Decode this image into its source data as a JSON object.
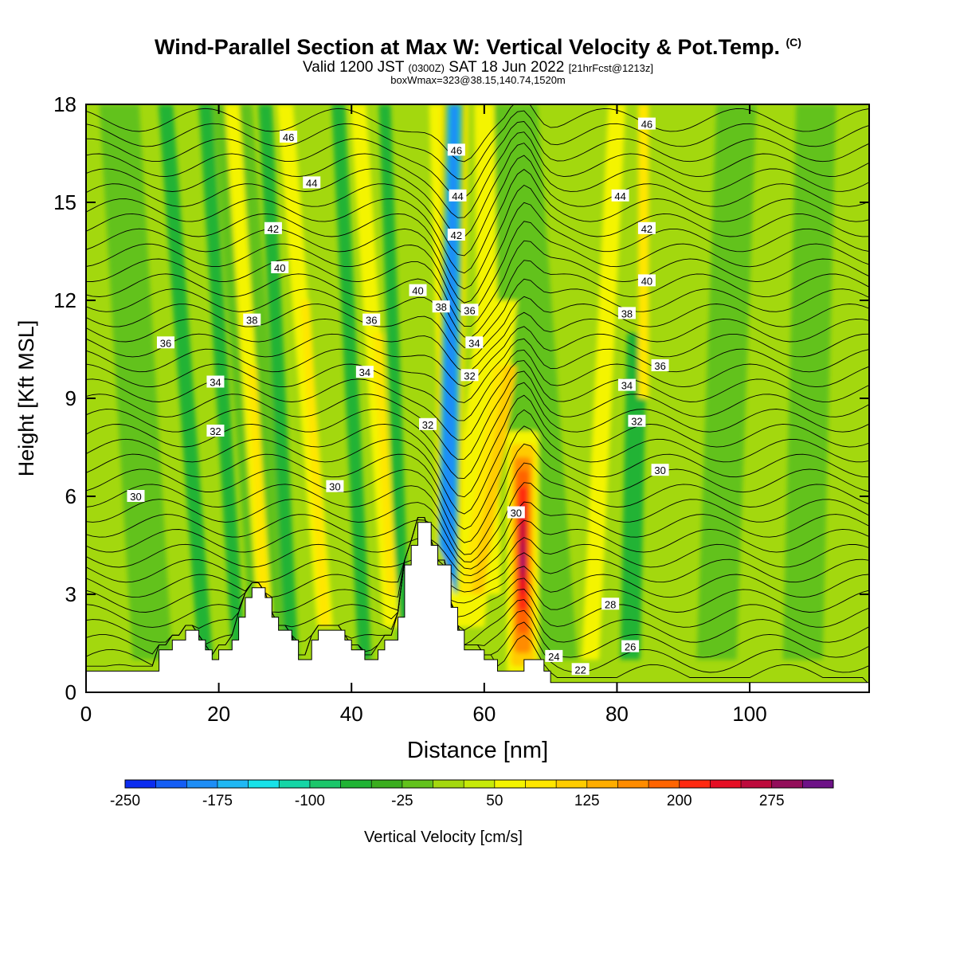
{
  "header": {
    "title_main": "Wind-Parallel Section at Max W: Vertical Velocity & Pot.Temp.",
    "title_tag": "(C)",
    "valid_prefix": "Valid 1200 JST",
    "valid_utc": "(0300Z)",
    "valid_date": "SAT 18 Jun 2022",
    "valid_fcst": "[21hrFcst@1213z]",
    "boxwmax": "boxWmax=323@38.15,140.74,1520m"
  },
  "chart_data": {
    "type": "heatmap",
    "xlabel": "Distance [nm]",
    "ylabel": "Height [Kft MSL]",
    "xlim": [
      0,
      118
    ],
    "ylim": [
      0,
      18
    ],
    "xticks": [
      0,
      20,
      40,
      60,
      80,
      100
    ],
    "yticks": [
      0,
      3,
      6,
      9,
      12,
      15,
      18
    ],
    "grid": false,
    "colorbar": {
      "label": "Vertical Velocity [cm/s]",
      "ticks": [
        -250,
        -175,
        -100,
        -25,
        50,
        125,
        200,
        275
      ],
      "levels": [
        -250,
        -225,
        -200,
        -175,
        -150,
        -125,
        -100,
        -75,
        -50,
        -25,
        0,
        25,
        50,
        75,
        100,
        125,
        150,
        175,
        200,
        225,
        250,
        275,
        300,
        325
      ],
      "colors": [
        "#0b2cf0",
        "#155ef5",
        "#1e8ef6",
        "#20b8f4",
        "#17e2e8",
        "#15d6a6",
        "#1bc66a",
        "#20b334",
        "#3aad1e",
        "#62c21c",
        "#a3d80e",
        "#c6ea08",
        "#f4f400",
        "#ffe600",
        "#ffcc00",
        "#ffad00",
        "#ff8c00",
        "#ff6400",
        "#ff2a10",
        "#e60e24",
        "#bd0a3c",
        "#930e5a",
        "#6d1287"
      ]
    },
    "contour_field": "Potential temperature",
    "contour_labels": [
      {
        "value": 46,
        "x": 30.5,
        "y": 17.0
      },
      {
        "value": 44,
        "x": 34,
        "y": 15.6
      },
      {
        "value": 42,
        "x": 28.2,
        "y": 14.2
      },
      {
        "value": 40,
        "x": 29.2,
        "y": 13.0
      },
      {
        "value": 38,
        "x": 25,
        "y": 11.4
      },
      {
        "value": 36,
        "x": 12,
        "y": 10.7
      },
      {
        "value": 34,
        "x": 19.5,
        "y": 9.5
      },
      {
        "value": 32,
        "x": 19.5,
        "y": 8.0
      },
      {
        "value": 30,
        "x": 7.5,
        "y": 6.0
      },
      {
        "value": 36,
        "x": 43,
        "y": 11.4
      },
      {
        "value": 34,
        "x": 42,
        "y": 9.8
      },
      {
        "value": 30,
        "x": 37.5,
        "y": 6.3
      },
      {
        "value": 46,
        "x": 55.8,
        "y": 16.6
      },
      {
        "value": 44,
        "x": 56,
        "y": 15.2
      },
      {
        "value": 42,
        "x": 55.8,
        "y": 14.0
      },
      {
        "value": 40,
        "x": 50,
        "y": 12.3
      },
      {
        "value": 38,
        "x": 53.5,
        "y": 11.8
      },
      {
        "value": 36,
        "x": 57.8,
        "y": 11.7
      },
      {
        "value": 34,
        "x": 58.5,
        "y": 10.7
      },
      {
        "value": 32,
        "x": 57.8,
        "y": 9.7
      },
      {
        "value": 32,
        "x": 51.5,
        "y": 8.2
      },
      {
        "value": 30,
        "x": 64.8,
        "y": 5.5
      },
      {
        "value": 46,
        "x": 84.5,
        "y": 17.4
      },
      {
        "value": 44,
        "x": 80.5,
        "y": 15.2
      },
      {
        "value": 42,
        "x": 84.5,
        "y": 14.2
      },
      {
        "value": 40,
        "x": 84.5,
        "y": 12.6
      },
      {
        "value": 38,
        "x": 81.5,
        "y": 11.6
      },
      {
        "value": 36,
        "x": 86.5,
        "y": 10.0
      },
      {
        "value": 34,
        "x": 81.5,
        "y": 9.4
      },
      {
        "value": 32,
        "x": 83,
        "y": 8.3
      },
      {
        "value": 30,
        "x": 86.5,
        "y": 6.8
      },
      {
        "value": 28,
        "x": 79,
        "y": 2.7
      },
      {
        "value": 26,
        "x": 82,
        "y": 1.4
      },
      {
        "value": 24,
        "x": 70.5,
        "y": 1.1
      },
      {
        "value": 22,
        "x": 74.5,
        "y": 0.7
      }
    ],
    "terrain_kft": [
      [
        0,
        0.65
      ],
      [
        11,
        0.65
      ],
      [
        11,
        1.3
      ],
      [
        13,
        1.3
      ],
      [
        13,
        1.6
      ],
      [
        15,
        1.6
      ],
      [
        15,
        1.9
      ],
      [
        17,
        1.9
      ],
      [
        17,
        1.6
      ],
      [
        18,
        1.6
      ],
      [
        18,
        1.3
      ],
      [
        19,
        1.3
      ],
      [
        19,
        1.0
      ],
      [
        20,
        1.0
      ],
      [
        20,
        1.3
      ],
      [
        22,
        1.3
      ],
      [
        22,
        1.6
      ],
      [
        23,
        1.6
      ],
      [
        23,
        2.3
      ],
      [
        24,
        2.3
      ],
      [
        24,
        2.9
      ],
      [
        25,
        2.9
      ],
      [
        25,
        3.2
      ],
      [
        27,
        3.2
      ],
      [
        27,
        2.9
      ],
      [
        28,
        2.9
      ],
      [
        28,
        2.3
      ],
      [
        29,
        2.3
      ],
      [
        29,
        1.9
      ],
      [
        31,
        1.9
      ],
      [
        31,
        1.6
      ],
      [
        32,
        1.6
      ],
      [
        32,
        1.0
      ],
      [
        34,
        1.0
      ],
      [
        34,
        1.6
      ],
      [
        35,
        1.6
      ],
      [
        35,
        1.9
      ],
      [
        39,
        1.9
      ],
      [
        39,
        1.6
      ],
      [
        40,
        1.6
      ],
      [
        40,
        1.3
      ],
      [
        42,
        1.3
      ],
      [
        42,
        1.0
      ],
      [
        44,
        1.0
      ],
      [
        44,
        1.3
      ],
      [
        45,
        1.3
      ],
      [
        45,
        1.6
      ],
      [
        47,
        1.6
      ],
      [
        47,
        2.3
      ],
      [
        48,
        2.3
      ],
      [
        48,
        3.9
      ],
      [
        49,
        3.9
      ],
      [
        49,
        4.5
      ],
      [
        50,
        4.5
      ],
      [
        50,
        5.2
      ],
      [
        52,
        5.2
      ],
      [
        52,
        4.5
      ],
      [
        53,
        4.5
      ],
      [
        53,
        3.9
      ],
      [
        55,
        3.9
      ],
      [
        55,
        2.6
      ],
      [
        56,
        2.6
      ],
      [
        56,
        1.9
      ],
      [
        57,
        1.9
      ],
      [
        57,
        1.3
      ],
      [
        60,
        1.3
      ],
      [
        60,
        1.0
      ],
      [
        62,
        1.0
      ],
      [
        62,
        0.65
      ],
      [
        66,
        0.65
      ],
      [
        66,
        1.0
      ],
      [
        69,
        1.0
      ],
      [
        69,
        0.65
      ],
      [
        70,
        0.65
      ],
      [
        70,
        0.3
      ],
      [
        118,
        0.3
      ]
    ]
  }
}
